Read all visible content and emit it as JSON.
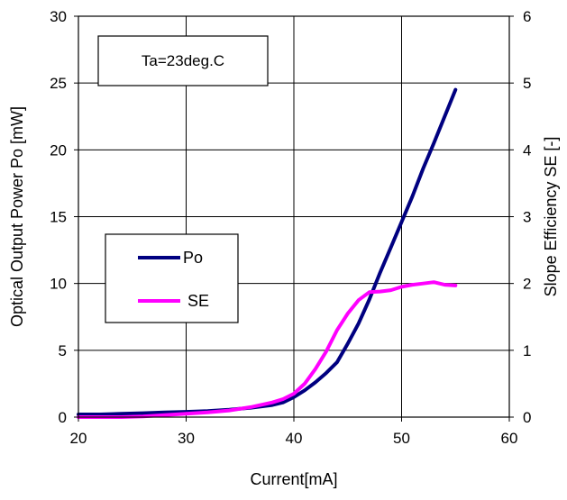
{
  "chart_data": {
    "type": "line",
    "xlabel": "Current[mA]",
    "ylabel_left": "Optical Output Power Po [mW]",
    "ylabel_right": "Slope Efficiency SE [-]",
    "xlim": [
      20,
      60
    ],
    "ylim_left": [
      0,
      30
    ],
    "ylim_right": [
      0,
      6
    ],
    "x_ticks": [
      20,
      30,
      40,
      50,
      60
    ],
    "y_left_ticks": [
      0,
      5,
      10,
      15,
      20,
      25,
      30
    ],
    "y_right_ticks": [
      0,
      1,
      2,
      3,
      4,
      5,
      6
    ],
    "grid": true,
    "legend_position": "left-middle",
    "annotation": "Ta=23deg.C",
    "series": [
      {
        "name": "Po",
        "axis": "left",
        "color": "#000080",
        "x": [
          20,
          22,
          24,
          26,
          28,
          30,
          32,
          34,
          36,
          38,
          39,
          40,
          41,
          42,
          43,
          44,
          45,
          46,
          47,
          48,
          49,
          50,
          51,
          52,
          53,
          54,
          55
        ],
        "y": [
          0.2,
          0.2,
          0.25,
          0.3,
          0.35,
          0.4,
          0.45,
          0.55,
          0.7,
          0.9,
          1.1,
          1.5,
          2.0,
          2.6,
          3.3,
          4.1,
          5.5,
          7.0,
          8.8,
          10.8,
          12.7,
          14.6,
          16.5,
          18.6,
          20.5,
          22.5,
          24.5
        ]
      },
      {
        "name": "SE",
        "axis": "right",
        "color": "#ff00ff",
        "x": [
          20,
          22,
          24,
          26,
          28,
          30,
          32,
          34,
          36,
          38,
          39,
          40,
          41,
          42,
          43,
          44,
          45,
          46,
          47,
          48,
          49,
          50,
          51,
          52,
          53,
          54,
          55
        ],
        "y": [
          0.0,
          0.0,
          0.0,
          0.01,
          0.03,
          0.05,
          0.07,
          0.1,
          0.15,
          0.22,
          0.27,
          0.35,
          0.5,
          0.72,
          0.98,
          1.3,
          1.55,
          1.75,
          1.87,
          1.88,
          1.9,
          1.95,
          1.98,
          2.0,
          2.02,
          1.98,
          1.97
        ]
      }
    ]
  }
}
